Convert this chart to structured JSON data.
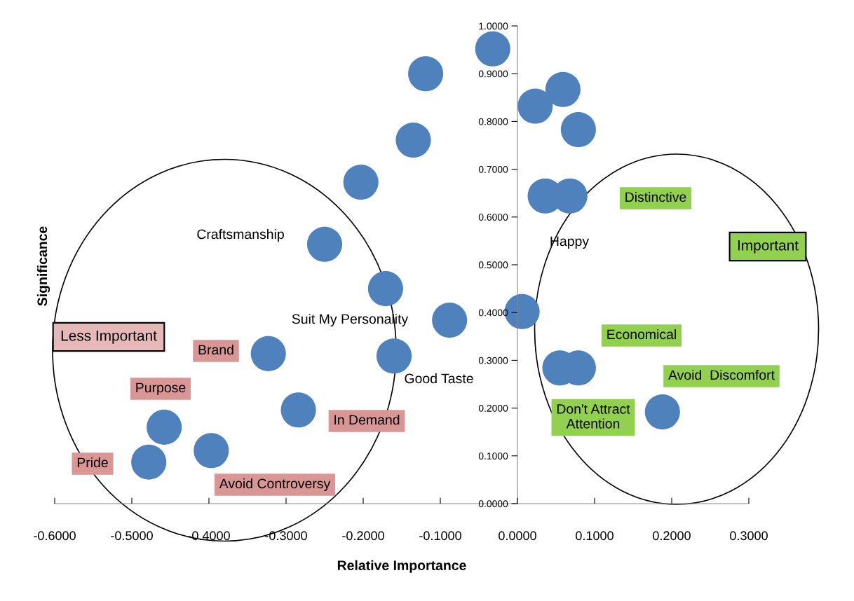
{
  "chart_data": {
    "type": "bubble",
    "xlabel": "Relative Importance",
    "ylabel": "Significance",
    "x": [
      -0.032,
      -0.119,
      0.059,
      0.023,
      0.079,
      -0.135,
      -0.203,
      0.036,
      0.068,
      -0.25,
      -0.171,
      0.006,
      -0.088,
      -0.323,
      -0.16,
      0.055,
      0.079,
      -0.284,
      0.188,
      -0.458,
      -0.397,
      -0.478
    ],
    "series": [
      {
        "color": "#4f81bd",
        "values": [
          0.952,
          0.9,
          0.867,
          0.832,
          0.783,
          0.761,
          0.673,
          0.644,
          0.644,
          0.543,
          0.45,
          0.402,
          0.384,
          0.314,
          0.309,
          0.284,
          0.284,
          0.196,
          0.192,
          0.16,
          0.111,
          0.087
        ],
        "sizes": [
          1,
          1,
          1,
          1,
          1,
          1,
          1,
          1,
          1,
          1,
          1,
          1,
          1,
          1,
          1,
          1,
          1,
          1,
          1,
          1,
          1,
          1
        ]
      }
    ],
    "xlim": [
      -0.6,
      0.3
    ],
    "ylim": [
      0,
      1
    ],
    "xticks": [
      {
        "value": -0.6,
        "label": "-0.6000"
      },
      {
        "value": -0.5,
        "label": "-0.5000"
      },
      {
        "value": -0.4,
        "label": "-0.4000"
      },
      {
        "value": -0.3,
        "label": "-0.3000"
      },
      {
        "value": -0.2,
        "label": "-0.2000"
      },
      {
        "value": -0.1,
        "label": "-0.1000"
      },
      {
        "value": 0,
        "label": "0.0000"
      },
      {
        "value": 0.1,
        "label": "0.1000"
      },
      {
        "value": 0.2,
        "label": "0.2000"
      },
      {
        "value": 0.3,
        "label": "0.3000"
      }
    ],
    "yticks": [
      {
        "value": 0,
        "label": "0.0000"
      },
      {
        "value": 0.1,
        "label": "0.1000"
      },
      {
        "value": 0.2,
        "label": "0.2000"
      },
      {
        "value": 0.3,
        "label": "0.3000"
      },
      {
        "value": 0.4,
        "label": "0.4000"
      },
      {
        "value": 0.5,
        "label": "0.5000"
      },
      {
        "value": 0.6,
        "label": "0.6000"
      },
      {
        "value": 0.7,
        "label": "0.7000"
      },
      {
        "value": 0.8,
        "label": "0.8000"
      },
      {
        "value": 0.9,
        "label": "0.9000"
      },
      {
        "value": 1,
        "label": "1.0000"
      }
    ],
    "annotations": [
      "Distinctive",
      "Happy",
      "Important",
      "Craftsmanship",
      "Suit My Personality",
      "Less Important",
      "Economical",
      "Brand",
      "Good Taste",
      "Avoid  Discomfort",
      "Purpose",
      "Don't Attract\nAttention",
      "In Demand",
      "Pride",
      "Avoid Controversy"
    ],
    "grid": false,
    "legend": false
  }
}
